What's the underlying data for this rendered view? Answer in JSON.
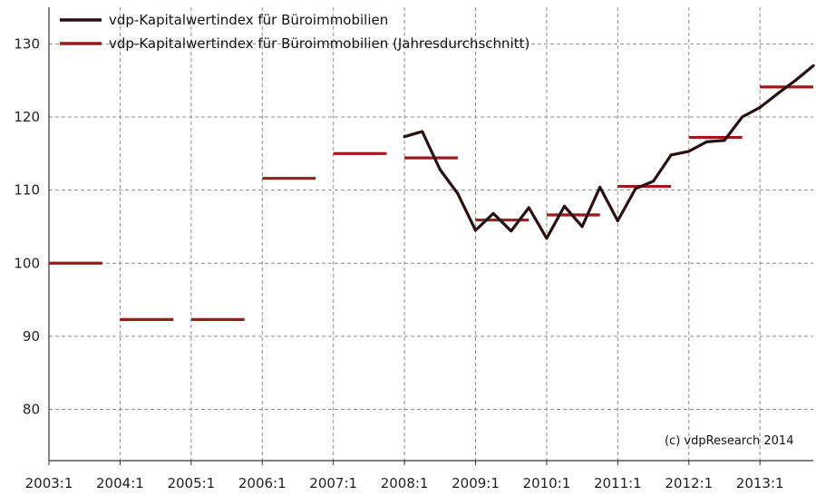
{
  "chart_data": {
    "type": "line",
    "title": "",
    "xlabel": "",
    "ylabel": "",
    "ylim": [
      73,
      135
    ],
    "xlim": [
      2003.0,
      2013.75
    ],
    "x_ticks": [
      {
        "label": "2003:1",
        "x": 2003.0
      },
      {
        "label": "2004:1",
        "x": 2004.0
      },
      {
        "label": "2005:1",
        "x": 2005.0
      },
      {
        "label": "2006:1",
        "x": 2006.0
      },
      {
        "label": "2007:1",
        "x": 2007.0
      },
      {
        "label": "2008:1",
        "x": 2008.0
      },
      {
        "label": "2009:1",
        "x": 2009.0
      },
      {
        "label": "2010:1",
        "x": 2010.0
      },
      {
        "label": "2011:1",
        "x": 2011.0
      },
      {
        "label": "2012:1",
        "x": 2012.0
      },
      {
        "label": "2013:1",
        "x": 2013.0
      }
    ],
    "y_ticks": [
      80,
      90,
      100,
      110,
      120,
      130
    ],
    "grid": true,
    "legend_position": "top-left",
    "annotation": "(c) vdpResearch 2014",
    "series": [
      {
        "name": "vdp-Kapitalwertindex für Büroimmobilien",
        "kind": "line",
        "color": "#2a0f12",
        "points": [
          [
            2008.0,
            117.3
          ],
          [
            2008.25,
            118.0
          ],
          [
            2008.5,
            112.8
          ],
          [
            2008.75,
            109.5
          ],
          [
            2009.0,
            104.5
          ],
          [
            2009.25,
            106.8
          ],
          [
            2009.5,
            104.4
          ],
          [
            2009.75,
            107.6
          ],
          [
            2010.0,
            103.4
          ],
          [
            2010.25,
            107.8
          ],
          [
            2010.5,
            105.0
          ],
          [
            2010.75,
            110.4
          ],
          [
            2011.0,
            105.8
          ],
          [
            2011.25,
            110.2
          ],
          [
            2011.5,
            111.2
          ],
          [
            2011.75,
            114.8
          ],
          [
            2012.0,
            115.3
          ],
          [
            2012.25,
            116.6
          ],
          [
            2012.5,
            116.8
          ],
          [
            2012.75,
            120.0
          ],
          [
            2013.0,
            121.3
          ],
          [
            2013.25,
            123.2
          ],
          [
            2013.5,
            125.0
          ],
          [
            2013.75,
            127.0
          ]
        ]
      },
      {
        "name": "vdp-Kapitalwertindex für Büroimmobilien (Jahresdurchschnitt)",
        "kind": "step",
        "color": "#9b1b1b",
        "segments": [
          {
            "from": 2003.0,
            "to": 2003.75,
            "value": 100.0
          },
          {
            "from": 2004.0,
            "to": 2004.75,
            "value": 92.3
          },
          {
            "from": 2005.0,
            "to": 2005.75,
            "value": 92.3
          },
          {
            "from": 2006.0,
            "to": 2006.75,
            "value": 111.6
          },
          {
            "from": 2007.0,
            "to": 2007.75,
            "value": 115.0
          },
          {
            "from": 2008.0,
            "to": 2008.75,
            "value": 114.4
          },
          {
            "from": 2009.0,
            "to": 2009.75,
            "value": 105.9
          },
          {
            "from": 2010.0,
            "to": 2010.75,
            "value": 106.6
          },
          {
            "from": 2011.0,
            "to": 2011.75,
            "value": 110.5
          },
          {
            "from": 2012.0,
            "to": 2012.75,
            "value": 117.2
          },
          {
            "from": 2013.0,
            "to": 2013.75,
            "value": 124.1
          }
        ]
      }
    ]
  }
}
